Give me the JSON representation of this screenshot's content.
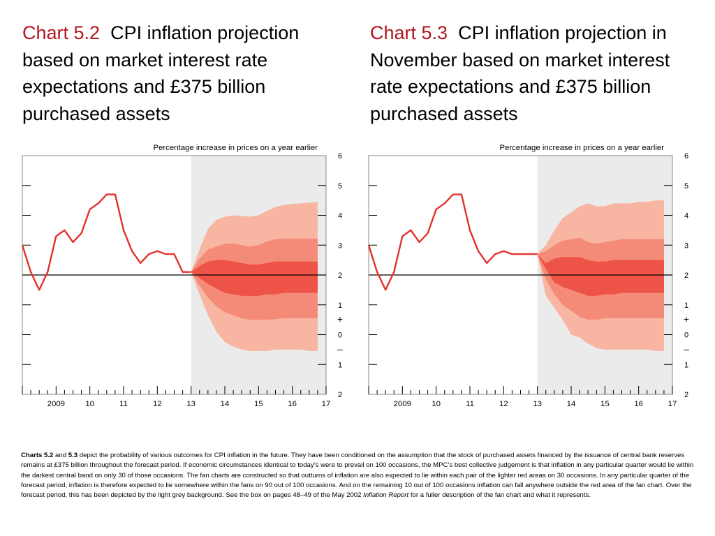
{
  "charts": [
    {
      "number": "Chart 5.2",
      "title": "CPI inflation projection based on market interest rate expectations and £375 billion purchased assets"
    },
    {
      "number": "Chart 5.3",
      "title": "CPI inflation projection in November based on market interest rate expectations and £375 billion purchased assets"
    }
  ],
  "caption": {
    "lead_bold_1": "Charts 5.2",
    "lead_and": " and ",
    "lead_bold_2": "5.3",
    "text_1": " depict the probability of various outcomes for CPI inflation in the future.  They have been conditioned on the assumption that the stock of purchased assets financed by the issuance of central bank reserves remains at £375 billion throughout the forecast period.  If economic circumstances identical to today’s were to prevail on 100 occasions, the MPC’s best collective judgement is that inflation in any particular quarter would lie within the darkest central band on only 30 of those occasions.  The fan charts are constructed so that outturns of inflation are also expected to lie within each pair of the lighter red areas on 30 occasions.  In any particular quarter of the forecast period, inflation is therefore expected to lie somewhere within the fans on 90 out of 100 occasions.  And on the remaining 10 out of 100 occasions inflation can fall anywhere outside the red area of the fan chart.  Over the forecast period, this has been depicted by the light grey background.  See the box on pages 48–49 of the May 2002 ",
    "italic": "Inflation Report",
    "text_2": " for a fuller description of the fan chart and what it represents."
  },
  "colors": {
    "title_number": "#b2161e",
    "line": "#e2312d",
    "fan_outer": "#f8b5a1",
    "fan_middle": "#f48b78",
    "fan_inner": "#ee5347",
    "forecast_bg": "#ebebeb"
  },
  "chart_data": [
    {
      "type": "line",
      "title": "Chart 5.2 CPI inflation projection based on market interest rate expectations and £375 billion purchased assets",
      "ylabel": "Percentage increase in prices on a year earlier",
      "ylim": [
        -2,
        6
      ],
      "y_tick_labels": [
        "6",
        "5",
        "4",
        "3",
        "2",
        "1",
        "+",
        "0",
        "–",
        "1",
        "2"
      ],
      "x_tick_labels": [
        "2009",
        "10",
        "11",
        "12",
        "13",
        "14",
        "15",
        "16",
        "17"
      ],
      "x_range": [
        2008.0,
        2017.0
      ],
      "forecast_start": 2013.0,
      "reference_line": 2,
      "series": [
        {
          "x": [
            2008.0,
            2008.25,
            2008.5,
            2008.75,
            2009.0,
            2009.25,
            2009.5,
            2009.75,
            2010.0,
            2010.25,
            2010.5,
            2010.75,
            2011.0,
            2011.25,
            2011.5,
            2011.75,
            2012.0,
            2012.25,
            2012.5,
            2012.75,
            2013.0
          ],
          "y": [
            3.0,
            2.1,
            1.5,
            2.1,
            3.3,
            3.5,
            3.1,
            3.4,
            4.2,
            4.4,
            4.7,
            4.7,
            3.5,
            2.8,
            2.4,
            2.7,
            2.8,
            2.7,
            2.7,
            2.1,
            2.1
          ]
        }
      ],
      "fan": {
        "x": [
          2013.0,
          2013.25,
          2013.5,
          2013.75,
          2014.0,
          2014.25,
          2014.5,
          2014.75,
          2015.0,
          2015.25,
          2015.5,
          2015.75,
          2016.0,
          2016.25,
          2016.5,
          2016.75
        ],
        "bands": [
          {
            "lower": [
              2.1,
              1.35,
              0.65,
              0.1,
              -0.25,
              -0.4,
              -0.5,
              -0.55,
              -0.55,
              -0.55,
              -0.5,
              -0.5,
              -0.5,
              -0.5,
              -0.55,
              -0.55
            ],
            "upper": [
              2.1,
              2.85,
              3.55,
              3.85,
              3.95,
              4.0,
              3.98,
              3.95,
              4.0,
              4.15,
              4.28,
              4.35,
              4.38,
              4.4,
              4.42,
              4.45
            ]
          },
          {
            "lower": [
              2.1,
              1.65,
              1.25,
              0.95,
              0.75,
              0.65,
              0.55,
              0.5,
              0.5,
              0.5,
              0.52,
              0.55,
              0.55,
              0.55,
              0.55,
              0.55
            ],
            "upper": [
              2.1,
              2.55,
              2.85,
              2.95,
              3.05,
              3.05,
              3.0,
              2.95,
              3.0,
              3.12,
              3.2,
              3.22,
              3.22,
              3.22,
              3.22,
              3.22
            ]
          },
          {
            "lower": [
              2.1,
              1.9,
              1.7,
              1.55,
              1.4,
              1.35,
              1.3,
              1.3,
              1.3,
              1.35,
              1.35,
              1.4,
              1.4,
              1.4,
              1.4,
              1.4
            ],
            "upper": [
              2.1,
              2.3,
              2.45,
              2.5,
              2.5,
              2.45,
              2.4,
              2.35,
              2.35,
              2.4,
              2.45,
              2.45,
              2.45,
              2.45,
              2.45,
              2.45
            ]
          }
        ]
      }
    },
    {
      "type": "line",
      "title": "Chart 5.3 CPI inflation projection in November based on market interest rate expectations and £375 billion purchased assets",
      "ylabel": "Percentage increase in prices on a year earlier",
      "ylim": [
        -2,
        6
      ],
      "y_tick_labels": [
        "6",
        "5",
        "4",
        "3",
        "2",
        "1",
        "+",
        "0",
        "–",
        "1",
        "2"
      ],
      "x_tick_labels": [
        "2009",
        "10",
        "11",
        "12",
        "13",
        "14",
        "15",
        "16",
        "17"
      ],
      "x_range": [
        2008.0,
        2017.0
      ],
      "forecast_start": 2013.0,
      "reference_line": 2,
      "series": [
        {
          "x": [
            2008.0,
            2008.25,
            2008.5,
            2008.75,
            2009.0,
            2009.25,
            2009.5,
            2009.75,
            2010.0,
            2010.25,
            2010.5,
            2010.75,
            2011.0,
            2011.25,
            2011.5,
            2011.75,
            2012.0,
            2012.25,
            2012.5,
            2012.75,
            2013.0
          ],
          "y": [
            3.0,
            2.1,
            1.5,
            2.1,
            3.3,
            3.5,
            3.1,
            3.4,
            4.2,
            4.4,
            4.7,
            4.7,
            3.5,
            2.8,
            2.4,
            2.7,
            2.8,
            2.7,
            2.7,
            2.7,
            2.7
          ]
        }
      ],
      "fan": {
        "x": [
          2013.0,
          2013.25,
          2013.5,
          2013.75,
          2014.0,
          2014.25,
          2014.5,
          2014.75,
          2015.0,
          2015.25,
          2015.5,
          2015.75,
          2016.0,
          2016.25,
          2016.5,
          2016.75
        ],
        "bands": [
          {
            "lower": [
              2.7,
              1.3,
              0.9,
              0.5,
              0.0,
              -0.1,
              -0.3,
              -0.45,
              -0.5,
              -0.5,
              -0.5,
              -0.5,
              -0.5,
              -0.5,
              -0.55,
              -0.55
            ],
            "upper": [
              2.7,
              3.0,
              3.5,
              3.9,
              4.1,
              4.3,
              4.4,
              4.3,
              4.3,
              4.4,
              4.4,
              4.4,
              4.45,
              4.45,
              4.5,
              4.5
            ]
          },
          {
            "lower": [
              2.7,
              1.85,
              1.35,
              1.0,
              0.8,
              0.6,
              0.5,
              0.5,
              0.55,
              0.55,
              0.55,
              0.55,
              0.55,
              0.55,
              0.55,
              0.55
            ],
            "upper": [
              2.7,
              2.8,
              3.0,
              3.15,
              3.2,
              3.25,
              3.1,
              3.05,
              3.1,
              3.15,
              3.2,
              3.2,
              3.2,
              3.2,
              3.2,
              3.2
            ]
          },
          {
            "lower": [
              2.7,
              2.2,
              1.75,
              1.6,
              1.5,
              1.4,
              1.3,
              1.3,
              1.35,
              1.35,
              1.4,
              1.4,
              1.4,
              1.4,
              1.4,
              1.4
            ],
            "upper": [
              2.7,
              2.4,
              2.55,
              2.6,
              2.6,
              2.6,
              2.5,
              2.45,
              2.45,
              2.5,
              2.5,
              2.5,
              2.5,
              2.5,
              2.5,
              2.5
            ]
          }
        ]
      }
    }
  ]
}
